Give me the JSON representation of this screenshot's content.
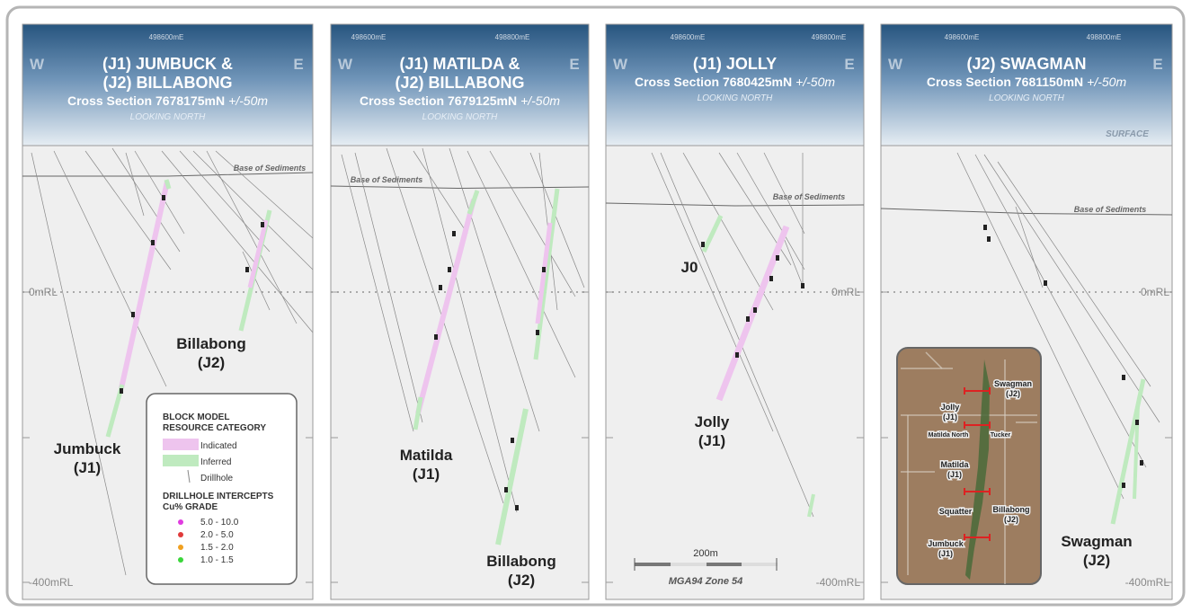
{
  "panels": [
    {
      "eastings": [
        "498600mE"
      ],
      "west": "W",
      "east": "E",
      "title": [
        "(J1) JUMBUCK &",
        "(J2) BILLABONG"
      ],
      "section": "Cross Section 7678175mN",
      "tolerance": "+/-50m",
      "looking": "LOOKING NORTH",
      "base": "Base of Sediments",
      "rl": [
        "0mRL",
        "-400mRL"
      ],
      "labels": [
        [
          "Billabong",
          "(J2)"
        ],
        [
          "Jumbuck",
          "(J1)"
        ]
      ]
    },
    {
      "eastings": [
        "498600mE",
        "498800mE"
      ],
      "west": "W",
      "east": "E",
      "title": [
        "(J1) MATILDA &",
        "(J2) BILLABONG"
      ],
      "section": "Cross Section 7679125mN",
      "tolerance": "+/-50m",
      "looking": "LOOKING NORTH",
      "base": "Base of Sediments",
      "rl": [],
      "labels": [
        [
          "Matilda",
          "(J1)"
        ],
        [
          "Billabong",
          "(J2)"
        ]
      ]
    },
    {
      "eastings": [
        "498600mE",
        "498800mE"
      ],
      "west": "W",
      "east": "E",
      "title": [
        "(J1) JOLLY"
      ],
      "section": "Cross Section 7680425mN",
      "tolerance": "+/-50m",
      "looking": "LOOKING NORTH",
      "base": "Base of Sediments",
      "rl": [
        "0mRL",
        "-400mRL"
      ],
      "labels": [
        [
          "J0"
        ],
        [
          "Jolly",
          "(J1)"
        ]
      ]
    },
    {
      "eastings": [
        "498600mE",
        "498800mE"
      ],
      "west": "W",
      "east": "E",
      "title": [
        "(J2) SWAGMAN"
      ],
      "section": "Cross Section 7681150mN",
      "tolerance": "+/-50m",
      "looking": "LOOKING NORTH",
      "surface": "SURFACE",
      "base": "Base of Sediments",
      "rl": [
        "0mRL",
        "-400mRL"
      ],
      "labels": [
        [
          "Swagman",
          "(J2)"
        ]
      ]
    }
  ],
  "legend": {
    "title": [
      "BLOCK MODEL",
      "RESOURCE CATEGORY"
    ],
    "items": [
      {
        "label": "Indicated",
        "color": "#eec4ee"
      },
      {
        "label": "Inferred",
        "color": "#bfeabf"
      },
      {
        "label": "Drillhole"
      }
    ],
    "grade_title": [
      "DRILLHOLE INTERCEPTS",
      "Cu% GRADE"
    ],
    "grades": [
      {
        "label": "5.0 - 10.0",
        "color": "#e03be0"
      },
      {
        "label": "2.0 - 5.0",
        "color": "#e03a3a"
      },
      {
        "label": "1.5 - 2.0",
        "color": "#f0a020"
      },
      {
        "label": "1.0 - 1.5",
        "color": "#3ad63a"
      }
    ]
  },
  "scale": {
    "length": "200m",
    "zone": "MGA94 Zone 54"
  },
  "inset": {
    "labels": [
      [
        "Swagman",
        "(J2)"
      ],
      [
        "Jolly",
        "(J1)"
      ],
      [
        "Matilda North"
      ],
      [
        "Tucker"
      ],
      [
        "Matilda",
        "(J1)"
      ],
      [
        "Squatter"
      ],
      [
        "Billabong",
        "(J2)"
      ],
      [
        "Jumbuck",
        "(J1)"
      ]
    ]
  }
}
